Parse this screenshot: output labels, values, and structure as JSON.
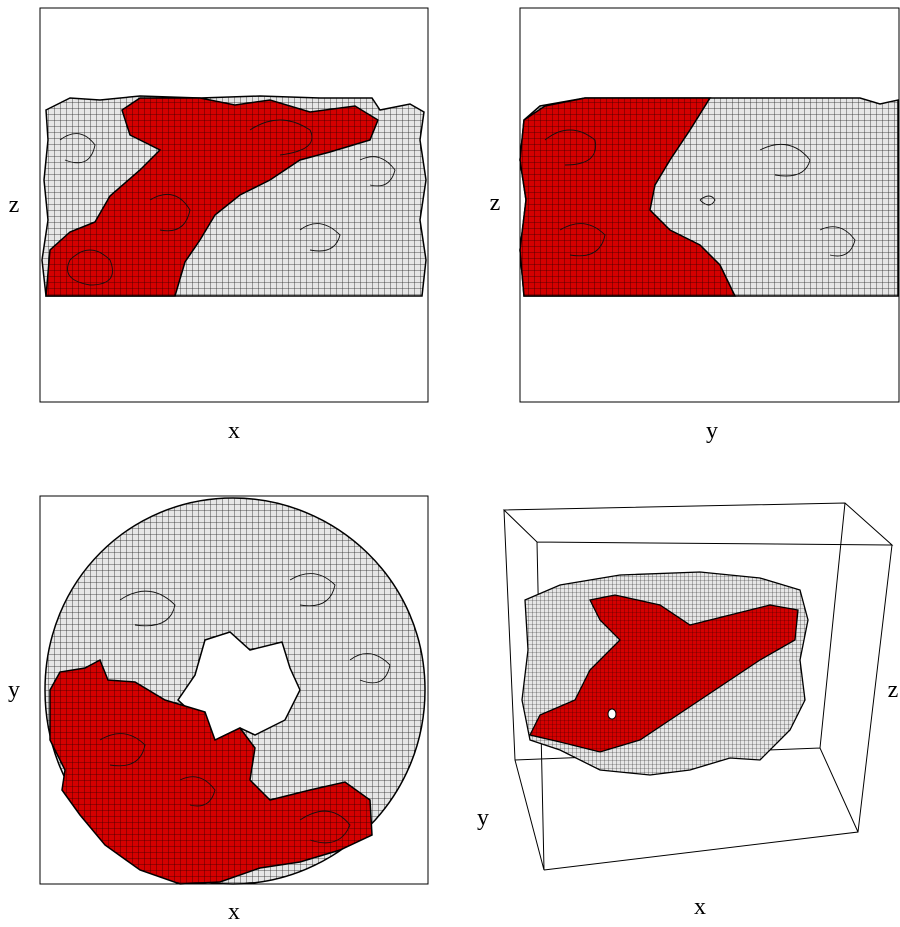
{
  "panels": [
    {
      "vertical_label": "z",
      "horizontal_label": "x"
    },
    {
      "vertical_label": "z",
      "horizontal_label": "y"
    },
    {
      "vertical_label": "y",
      "horizontal_label": "x"
    },
    {
      "right_label": "z",
      "left_label": "y",
      "bottom_label": "x"
    }
  ]
}
